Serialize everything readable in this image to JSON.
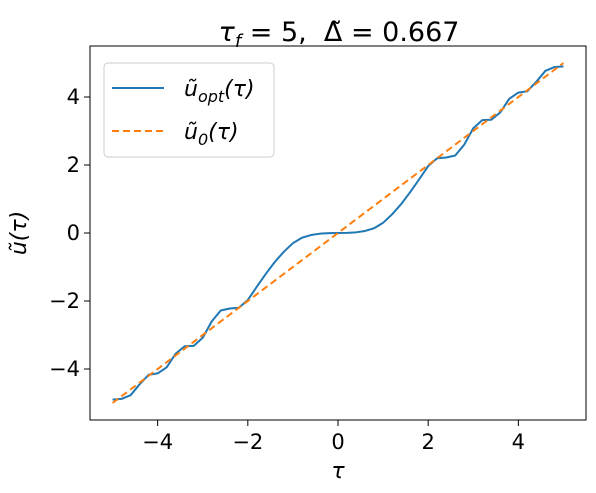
{
  "chart_data": {
    "type": "line",
    "title": "τ_f = 5, Δ̃ = 0.667",
    "title_parts": {
      "tau": "τ",
      "tau_sub": "f",
      "equals1": " = 5,  ",
      "delta": "Δ̃",
      "equals2": " = 0.667"
    },
    "xlabel": "τ",
    "ylabel": "ũ(τ)",
    "xlim": [
      -5.5,
      5.5
    ],
    "ylim": [
      -5.5,
      5.5
    ],
    "xticks": [
      -4,
      -2,
      0,
      2,
      4
    ],
    "yticks": [
      -4,
      -2,
      0,
      2,
      4
    ],
    "xtick_labels": [
      "−4",
      "−2",
      "0",
      "2",
      "4"
    ],
    "ytick_labels": [
      "−4",
      "−2",
      "0",
      "2",
      "4"
    ],
    "grid": false,
    "legend_position": "top-left",
    "series": [
      {
        "name": "ũ_opt(τ)",
        "name_base": "ũ",
        "name_sub": "opt",
        "name_arg": "(τ)",
        "color": "#1f77b4",
        "style": "solid",
        "x": [
          -5.0,
          -4.8,
          -4.6,
          -4.4,
          -4.2,
          -4.0,
          -3.8,
          -3.6,
          -3.4,
          -3.2,
          -3.0,
          -2.8,
          -2.6,
          -2.4,
          -2.2,
          -2.0,
          -1.8,
          -1.6,
          -1.4,
          -1.2,
          -1.0,
          -0.8,
          -0.6,
          -0.4,
          -0.2,
          0.0,
          0.2,
          0.4,
          0.6,
          0.8,
          1.0,
          1.2,
          1.4,
          1.6,
          1.8,
          2.0,
          2.2,
          2.4,
          2.6,
          2.8,
          3.0,
          3.2,
          3.4,
          3.6,
          3.8,
          4.0,
          4.2,
          4.4,
          4.6,
          4.8,
          5.0
        ],
        "y": [
          -4.9,
          -4.88,
          -4.77,
          -4.45,
          -4.17,
          -4.13,
          -3.95,
          -3.55,
          -3.33,
          -3.32,
          -3.08,
          -2.6,
          -2.28,
          -2.22,
          -2.2,
          -1.97,
          -1.58,
          -1.2,
          -0.85,
          -0.55,
          -0.3,
          -0.14,
          -0.06,
          -0.02,
          -0.005,
          0.0,
          0.005,
          0.02,
          0.06,
          0.14,
          0.3,
          0.55,
          0.85,
          1.2,
          1.58,
          1.97,
          2.2,
          2.22,
          2.28,
          2.6,
          3.08,
          3.32,
          3.33,
          3.55,
          3.95,
          4.13,
          4.17,
          4.45,
          4.77,
          4.88,
          4.9
        ]
      },
      {
        "name": "ũ_0(τ)",
        "name_base": "ũ",
        "name_sub": "0",
        "name_arg": "(τ)",
        "color": "#ff7f0e",
        "style": "dashed",
        "x": [
          -5.0,
          5.0
        ],
        "y": [
          -5.0,
          5.0
        ]
      }
    ]
  }
}
